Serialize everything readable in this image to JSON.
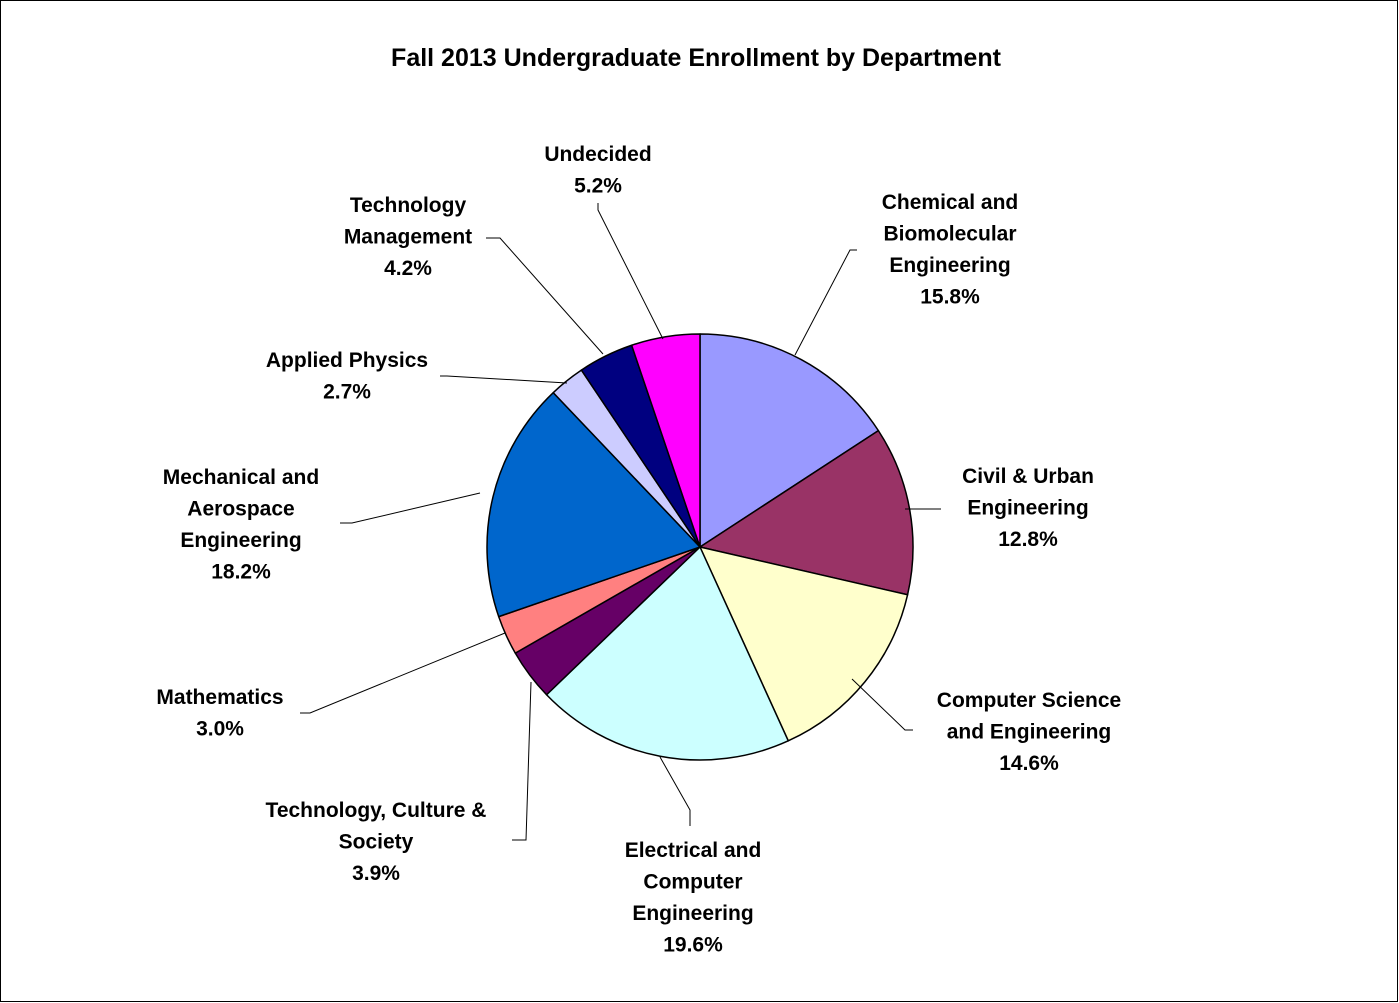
{
  "chart_data": {
    "type": "pie",
    "title": "Fall 2013 Undergraduate Enrollment by Department",
    "slices": [
      {
        "name": "Chemical and Biomolecular Engineering",
        "label_lines": [
          "Chemical and",
          "Biomolecular",
          "Engineering"
        ],
        "value": 15.8,
        "value_label": "15.8%",
        "color": "#9999ff"
      },
      {
        "name": "Civil & Urban Engineering",
        "label_lines": [
          "Civil & Urban",
          "Engineering"
        ],
        "value": 12.8,
        "value_label": "12.8%",
        "color": "#993366"
      },
      {
        "name": "Computer Science and Engineering",
        "label_lines": [
          "Computer Science",
          "and Engineering"
        ],
        "value": 14.6,
        "value_label": "14.6%",
        "color": "#ffffcc"
      },
      {
        "name": "Electrical and Computer Engineering",
        "label_lines": [
          "Electrical and",
          "Computer",
          "Engineering"
        ],
        "value": 19.6,
        "value_label": "19.6%",
        "color": "#ccffff"
      },
      {
        "name": "Technology, Culture & Society",
        "label_lines": [
          "Technology, Culture &",
          "Society"
        ],
        "value": 3.9,
        "value_label": "3.9%",
        "color": "#660066"
      },
      {
        "name": "Mathematics",
        "label_lines": [
          "Mathematics"
        ],
        "value": 3.0,
        "value_label": "3.0%",
        "color": "#ff8080"
      },
      {
        "name": "Mechanical and Aerospace Engineering",
        "label_lines": [
          "Mechanical and",
          "Aerospace",
          "Engineering"
        ],
        "value": 18.2,
        "value_label": "18.2%",
        "color": "#0066cc"
      },
      {
        "name": "Applied Physics",
        "label_lines": [
          "Applied Physics"
        ],
        "value": 2.7,
        "value_label": "2.7%",
        "color": "#ccccff"
      },
      {
        "name": "Technology Management",
        "label_lines": [
          "Technology",
          "Management"
        ],
        "value": 4.2,
        "value_label": "4.2%",
        "color": "#000080"
      },
      {
        "name": "Undecided",
        "label_lines": [
          "Undecided"
        ],
        "value": 5.2,
        "value_label": "5.2%",
        "color": "#ff00ff"
      }
    ],
    "start_angle": "12 o'clock",
    "direction": "clockwise",
    "legend": "none",
    "labels": "outside with leader lines"
  }
}
